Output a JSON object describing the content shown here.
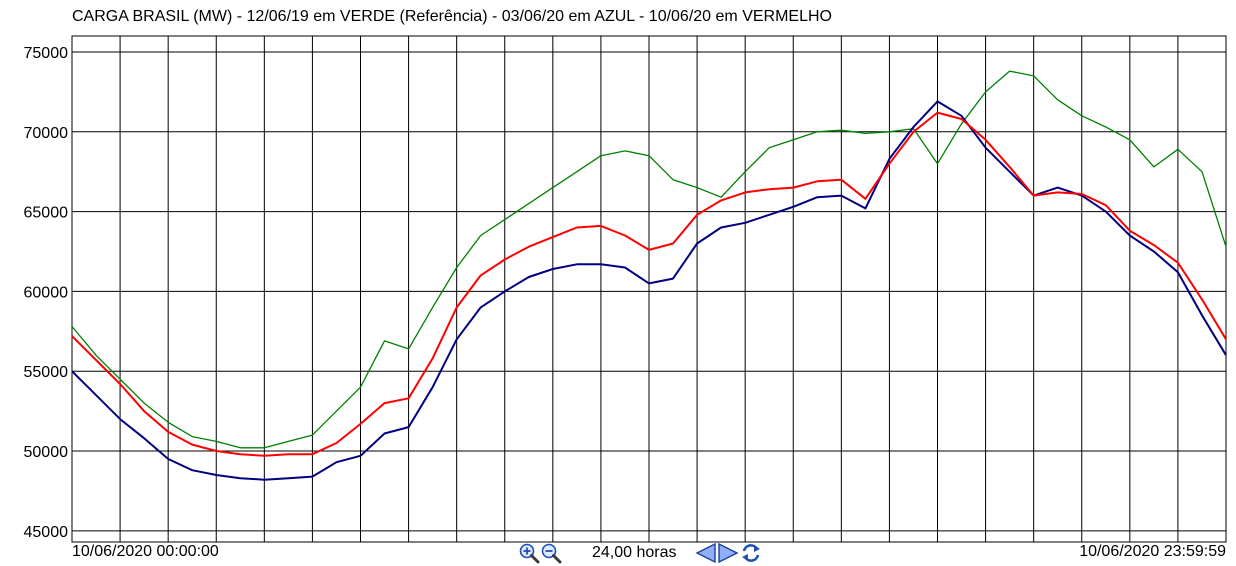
{
  "title": "CARGA BRASIL (MW) - 12/06/19 em VERDE (Referência) - 03/06/20 em AZUL - 10/06/20 em VERMELHO",
  "footer": {
    "start_time": "10/06/2020 00:00:00",
    "end_time": "10/06/2020 23:59:59",
    "span_label": "24,00 horas",
    "icons": {
      "zoom_in": "zoom-in-icon",
      "zoom_out": "zoom-out-icon",
      "prev": "arrow-left-icon",
      "next": "arrow-right-icon",
      "refresh": "refresh-icon"
    }
  },
  "chart_data": {
    "type": "line",
    "title": "CARGA BRASIL (MW) - 12/06/19 em VERDE (Referência) - 03/06/20 em AZUL - 10/06/20 em VERMELHO",
    "xlabel": "",
    "ylabel": "",
    "x_unit": "hours",
    "xlim": [
      0,
      24
    ],
    "ylim": [
      44300,
      76000
    ],
    "yticks": [
      45000,
      50000,
      55000,
      60000,
      65000,
      70000,
      75000
    ],
    "ytick_labels": [
      "45000",
      "50000",
      "55000",
      "60000",
      "65000",
      "70000",
      "75000"
    ],
    "x_gridlines": 24,
    "grid": true,
    "legend": "none",
    "x": [
      0,
      0.5,
      1,
      1.5,
      2,
      2.5,
      3,
      3.5,
      4,
      4.5,
      5,
      5.5,
      6,
      6.5,
      7,
      7.5,
      8,
      8.5,
      9,
      9.5,
      10,
      10.5,
      11,
      11.5,
      12,
      12.5,
      13,
      13.5,
      14,
      14.5,
      15,
      15.5,
      16,
      16.5,
      17,
      17.5,
      18,
      18.5,
      19,
      19.5,
      20,
      20.5,
      21,
      21.5,
      22,
      22.5,
      23,
      23.5,
      24
    ],
    "series": [
      {
        "color": "#008000",
        "values": [
          57800,
          56000,
          54500,
          53000,
          51800,
          50900,
          50600,
          50200,
          50200,
          50600,
          51000,
          52500,
          54000,
          56900,
          56400,
          59000,
          61500,
          63500,
          64500,
          65500,
          66500,
          67500,
          68500,
          68800,
          68500,
          67000,
          66500,
          65900,
          67500,
          69000,
          69500,
          70000,
          70100,
          69900,
          70000,
          70200,
          68000,
          70500,
          72500,
          73800,
          73500,
          72000,
          71000,
          70300,
          69500,
          67800,
          68900,
          67500,
          62800
        ]
      },
      {
        "color": "#000080",
        "values": [
          55000,
          53500,
          52000,
          50800,
          49500,
          48800,
          48500,
          48300,
          48200,
          48300,
          48400,
          49300,
          49700,
          51100,
          51500,
          54000,
          57000,
          59000,
          60000,
          60900,
          61400,
          61700,
          61700,
          61500,
          60500,
          60800,
          63000,
          64000,
          64300,
          64800,
          65300,
          65900,
          66000,
          65200,
          68300,
          70300,
          71900,
          71000,
          69000,
          67500,
          66000,
          66500,
          66000,
          65000,
          63500,
          62500,
          61200,
          58500,
          56000
        ]
      },
      {
        "color": "#ff0000",
        "values": [
          57200,
          55700,
          54200,
          52500,
          51200,
          50400,
          50000,
          49800,
          49700,
          49800,
          49800,
          50500,
          51700,
          53000,
          53300,
          55800,
          59000,
          61000,
          62000,
          62800,
          63400,
          64000,
          64100,
          63500,
          62600,
          63000,
          64800,
          65700,
          66200,
          66400,
          66500,
          66900,
          67000,
          65800,
          68000,
          70000,
          71200,
          70800,
          69500,
          67800,
          66000,
          66200,
          66100,
          65400,
          63800,
          62900,
          61800,
          59500,
          57000
        ]
      }
    ]
  }
}
